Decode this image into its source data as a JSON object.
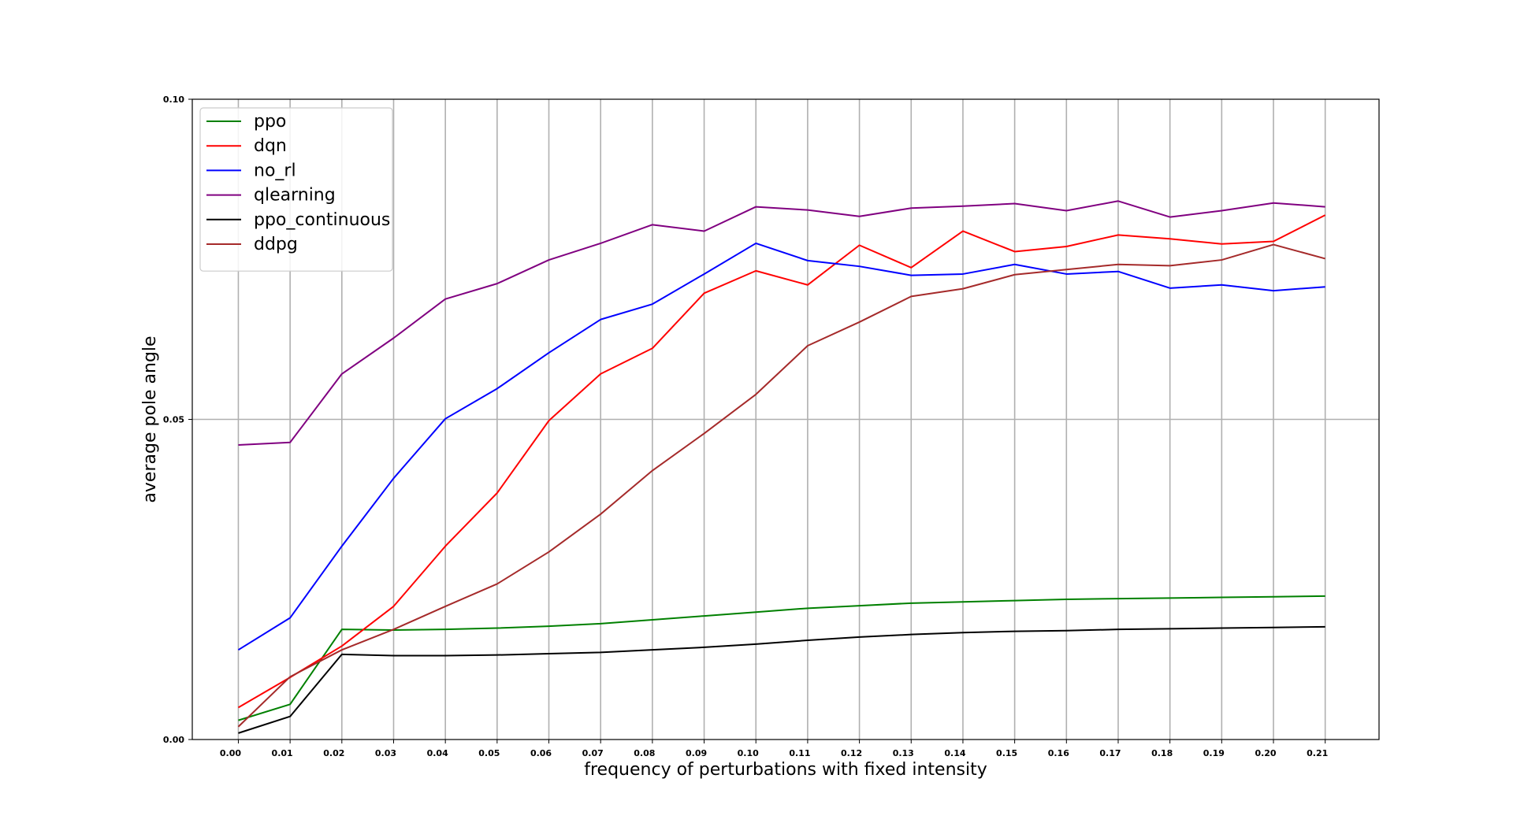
{
  "chart_data": {
    "type": "line",
    "title": "",
    "xlabel": "frequency of perturbations with fixed   intensity",
    "ylabel": "average pole angle",
    "x": [
      0.0,
      0.01,
      0.02,
      0.03,
      0.04,
      0.05,
      0.06,
      0.07,
      0.08,
      0.09,
      0.1,
      0.11,
      0.12,
      0.13,
      0.14,
      0.15,
      0.16,
      0.17,
      0.18,
      0.19,
      0.2,
      0.21
    ],
    "x_tick_labels": [
      "0.00",
      "0.01",
      "0.02",
      "0.03",
      "0.04",
      "0.05",
      "0.06",
      "0.07",
      "0.08",
      "0.09",
      "0.10",
      "0.11",
      "0.12",
      "0.13",
      "0.14",
      "0.15",
      "0.16",
      "0.17",
      "0.18",
      "0.19",
      "0.20",
      "0.21"
    ],
    "y_ticks": [
      0.0,
      0.05,
      0.1
    ],
    "y_tick_labels": [
      "0.00",
      "0.05",
      "0.10"
    ],
    "xlim": [
      -0.0089,
      0.2204
    ],
    "ylim": [
      0.0,
      0.1
    ],
    "grid": true,
    "legend_position": "upper-left",
    "series": [
      {
        "name": "ppo",
        "color": "#008000",
        "values": [
          0.003,
          0.0055,
          0.0172,
          0.0171,
          0.0172,
          0.0174,
          0.0177,
          0.0181,
          0.0187,
          0.0193,
          0.0199,
          0.0205,
          0.0209,
          0.0213,
          0.0215,
          0.0217,
          0.0219,
          0.022,
          0.0221,
          0.0222,
          0.0223,
          0.0224
        ]
      },
      {
        "name": "dqn",
        "color": "#ff0000",
        "values": [
          0.005,
          0.0097,
          0.0146,
          0.0208,
          0.0302,
          0.0385,
          0.0498,
          0.0571,
          0.0611,
          0.0697,
          0.0732,
          0.071,
          0.0772,
          0.0737,
          0.0794,
          0.0762,
          0.077,
          0.0788,
          0.0782,
          0.0774,
          0.0778,
          0.0819
        ]
      },
      {
        "name": "no_rl",
        "color": "#0000ff",
        "values": [
          0.014,
          0.019,
          0.0302,
          0.0408,
          0.0501,
          0.0548,
          0.0604,
          0.0656,
          0.068,
          0.0727,
          0.0775,
          0.0748,
          0.0739,
          0.0725,
          0.0727,
          0.0742,
          0.0727,
          0.0731,
          0.0705,
          0.071,
          0.0701,
          0.0707
        ]
      },
      {
        "name": "qlearning",
        "color": "#800080",
        "values": [
          0.046,
          0.0464,
          0.0571,
          0.0627,
          0.0688,
          0.0712,
          0.0749,
          0.0775,
          0.0804,
          0.0794,
          0.0832,
          0.0827,
          0.0817,
          0.083,
          0.0833,
          0.0837,
          0.0826,
          0.0841,
          0.0816,
          0.0826,
          0.0838,
          0.0832
        ]
      },
      {
        "name": "ppo_continuous",
        "color": "#000000",
        "values": [
          0.001,
          0.0036,
          0.0133,
          0.0131,
          0.0131,
          0.0132,
          0.0134,
          0.0136,
          0.014,
          0.0144,
          0.0149,
          0.0155,
          0.016,
          0.0164,
          0.0167,
          0.0169,
          0.017,
          0.0172,
          0.0173,
          0.0174,
          0.0175,
          0.0176
        ]
      },
      {
        "name": "ddpg",
        "color": "#a52a2a",
        "values": [
          0.002,
          0.0098,
          0.014,
          0.0172,
          0.0208,
          0.0243,
          0.0293,
          0.0352,
          0.042,
          0.0478,
          0.0539,
          0.0615,
          0.0652,
          0.0692,
          0.0704,
          0.0726,
          0.0734,
          0.0742,
          0.074,
          0.0749,
          0.0773,
          0.0751
        ]
      }
    ]
  }
}
